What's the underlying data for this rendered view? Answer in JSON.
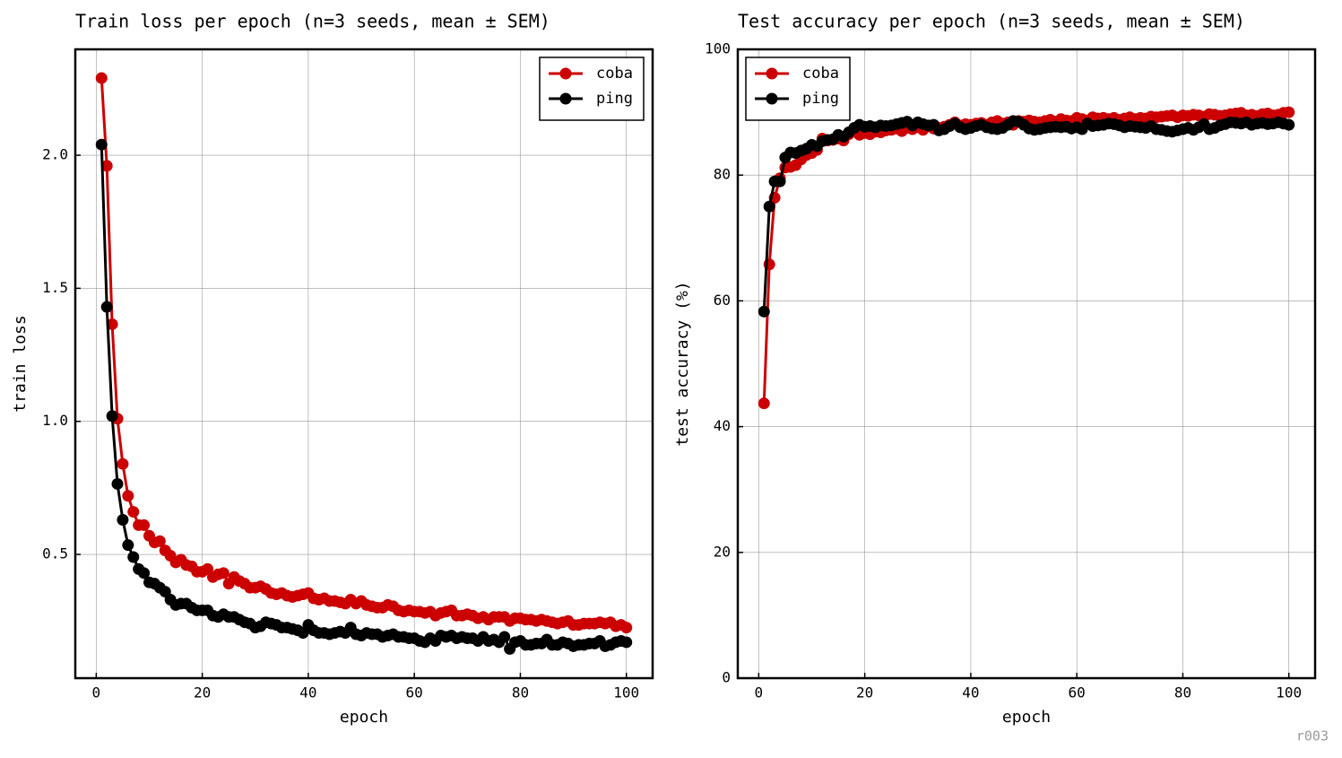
{
  "chart_data": [
    {
      "type": "line",
      "title": "Train loss per epoch (n=3 seeds, mean ± SEM)",
      "x_label": "epoch",
      "y_label": "train loss",
      "x": [
        1,
        2,
        3,
        4,
        5,
        6,
        7,
        8,
        9,
        10,
        11,
        12,
        13,
        14,
        15,
        16,
        17,
        18,
        19,
        20,
        21,
        22,
        23,
        24,
        25,
        26,
        27,
        28,
        29,
        30,
        31,
        32,
        33,
        34,
        35,
        36,
        37,
        38,
        39,
        40,
        41,
        42,
        43,
        44,
        45,
        46,
        47,
        48,
        49,
        50,
        51,
        52,
        53,
        54,
        55,
        56,
        57,
        58,
        59,
        60,
        61,
        62,
        63,
        64,
        65,
        66,
        67,
        68,
        69,
        70,
        71,
        72,
        73,
        74,
        75,
        76,
        77,
        78,
        79,
        80,
        81,
        82,
        83,
        84,
        85,
        86,
        87,
        88,
        89,
        90,
        91,
        92,
        93,
        94,
        95,
        96,
        97,
        98,
        99,
        100
      ],
      "series": [
        {
          "name": "coba",
          "color": "#cc0000",
          "values": [
            2.29,
            1.96,
            1.365,
            1.01,
            0.84,
            0.72,
            0.66,
            0.61,
            0.61,
            0.57,
            0.545,
            0.55,
            0.515,
            0.495,
            0.47,
            0.48,
            0.46,
            0.455,
            0.435,
            0.435,
            0.445,
            0.415,
            0.425,
            0.43,
            0.39,
            0.415,
            0.4,
            0.39,
            0.375,
            0.375,
            0.38,
            0.37,
            0.355,
            0.35,
            0.355,
            0.345,
            0.34,
            0.345,
            0.35,
            0.355,
            0.335,
            0.33,
            0.335,
            0.325,
            0.325,
            0.32,
            0.315,
            0.33,
            0.315,
            0.325,
            0.31,
            0.305,
            0.3,
            0.3,
            0.31,
            0.305,
            0.29,
            0.285,
            0.29,
            0.285,
            0.285,
            0.28,
            0.285,
            0.27,
            0.28,
            0.285,
            0.29,
            0.27,
            0.27,
            0.275,
            0.27,
            0.26,
            0.265,
            0.255,
            0.265,
            0.265,
            0.265,
            0.25,
            0.26,
            0.26,
            0.255,
            0.255,
            0.25,
            0.255,
            0.25,
            0.245,
            0.24,
            0.245,
            0.25,
            0.235,
            0.235,
            0.24,
            0.24,
            0.24,
            0.245,
            0.24,
            0.245,
            0.23,
            0.235,
            0.225
          ]
        },
        {
          "name": "ping",
          "color": "#000000",
          "values": [
            2.04,
            1.43,
            1.02,
            0.765,
            0.63,
            0.535,
            0.49,
            0.445,
            0.43,
            0.395,
            0.39,
            0.375,
            0.36,
            0.33,
            0.31,
            0.315,
            0.315,
            0.3,
            0.29,
            0.29,
            0.29,
            0.27,
            0.265,
            0.275,
            0.265,
            0.265,
            0.255,
            0.245,
            0.24,
            0.225,
            0.23,
            0.245,
            0.24,
            0.235,
            0.225,
            0.225,
            0.22,
            0.215,
            0.205,
            0.235,
            0.215,
            0.205,
            0.205,
            0.2,
            0.205,
            0.21,
            0.205,
            0.225,
            0.2,
            0.195,
            0.205,
            0.2,
            0.2,
            0.19,
            0.195,
            0.2,
            0.19,
            0.19,
            0.185,
            0.185,
            0.175,
            0.17,
            0.185,
            0.175,
            0.195,
            0.19,
            0.195,
            0.185,
            0.19,
            0.185,
            0.185,
            0.175,
            0.19,
            0.175,
            0.18,
            0.17,
            0.19,
            0.145,
            0.17,
            0.175,
            0.16,
            0.16,
            0.165,
            0.165,
            0.18,
            0.16,
            0.16,
            0.17,
            0.165,
            0.155,
            0.16,
            0.16,
            0.165,
            0.165,
            0.175,
            0.155,
            0.16,
            0.17,
            0.175,
            0.17
          ]
        }
      ],
      "xlim": [
        -3.95,
        104.95
      ],
      "xticks": [
        0,
        20,
        40,
        60,
        80,
        100
      ],
      "ylim": [
        0.035,
        2.398
      ],
      "yticks": [
        0.5,
        {
          "value": 1,
          "label": "1.0"
        },
        1.5,
        {
          "value": 2,
          "label": "2.0"
        }
      ],
      "grid": true,
      "legend": "upper right"
    },
    {
      "type": "line",
      "title": "Test accuracy per epoch (n=3 seeds, mean ± SEM)",
      "x_label": "epoch",
      "y_label": "test accuracy (%)",
      "x": [
        1,
        2,
        3,
        4,
        5,
        6,
        7,
        8,
        9,
        10,
        11,
        12,
        13,
        14,
        15,
        16,
        17,
        18,
        19,
        20,
        21,
        22,
        23,
        24,
        25,
        26,
        27,
        28,
        29,
        30,
        31,
        32,
        33,
        34,
        35,
        36,
        37,
        38,
        39,
        40,
        41,
        42,
        43,
        44,
        45,
        46,
        47,
        48,
        49,
        50,
        51,
        52,
        53,
        54,
        55,
        56,
        57,
        58,
        59,
        60,
        61,
        62,
        63,
        64,
        65,
        66,
        67,
        68,
        69,
        70,
        71,
        72,
        73,
        74,
        75,
        76,
        77,
        78,
        79,
        80,
        81,
        82,
        83,
        84,
        85,
        86,
        87,
        88,
        89,
        90,
        91,
        92,
        93,
        94,
        95,
        96,
        97,
        98,
        99,
        100
      ],
      "series": [
        {
          "name": "coba",
          "color": "#cc0000",
          "values": [
            43.7,
            65.8,
            76.4,
            79.5,
            81.2,
            81.3,
            81.6,
            82.5,
            83.2,
            83.5,
            84.0,
            85.8,
            85.5,
            85.6,
            85.8,
            85.5,
            86.5,
            87.0,
            86.4,
            86.7,
            86.5,
            86.9,
            86.8,
            87.1,
            87.2,
            87.4,
            87.0,
            87.5,
            87.3,
            87.6,
            87.2,
            87.8,
            87.4,
            87.5,
            87.7,
            88.0,
            88.4,
            87.9,
            88.1,
            88.0,
            88.2,
            88.3,
            88.0,
            88.4,
            88.6,
            88.2,
            88.4,
            88.0,
            88.6,
            88.5,
            88.7,
            88.5,
            88.4,
            88.6,
            88.8,
            88.5,
            88.9,
            88.7,
            88.6,
            89.1,
            88.9,
            88.7,
            89.2,
            89.0,
            89.1,
            88.9,
            89.1,
            88.8,
            89.0,
            89.2,
            88.9,
            89.1,
            89.0,
            89.3,
            89.2,
            89.3,
            89.4,
            89.5,
            89.2,
            89.5,
            89.4,
            89.6,
            89.5,
            89.3,
            89.7,
            89.6,
            89.4,
            89.5,
            89.7,
            89.8,
            89.9,
            89.5,
            89.6,
            89.4,
            89.7,
            89.8,
            89.5,
            89.6,
            89.9,
            90.0
          ]
        },
        {
          "name": "ping",
          "color": "#000000",
          "values": [
            58.3,
            75.0,
            79.0,
            79.0,
            82.8,
            83.6,
            83.5,
            83.9,
            84.2,
            84.8,
            84.6,
            85.4,
            85.6,
            85.7,
            86.4,
            86.1,
            86.8,
            87.5,
            88.0,
            87.7,
            87.8,
            87.6,
            87.9,
            87.8,
            87.9,
            88.1,
            88.3,
            88.5,
            87.9,
            88.4,
            88.1,
            87.9,
            88.0,
            87.1,
            87.3,
            87.8,
            88.2,
            87.6,
            87.3,
            87.5,
            87.8,
            88.0,
            87.6,
            87.4,
            87.3,
            87.5,
            88.0,
            88.6,
            88.5,
            88.0,
            87.4,
            87.2,
            87.3,
            87.5,
            87.6,
            87.7,
            87.6,
            87.7,
            87.4,
            87.6,
            87.3,
            88.2,
            87.8,
            87.9,
            88.0,
            88.2,
            88.1,
            87.9,
            87.6,
            87.8,
            87.7,
            87.6,
            87.5,
            87.8,
            87.3,
            87.2,
            87.0,
            86.9,
            87.1,
            87.3,
            87.5,
            87.2,
            87.6,
            88.1,
            87.3,
            87.5,
            87.9,
            88.1,
            88.4,
            88.3,
            88.2,
            88.4,
            88.0,
            88.2,
            88.3,
            88.1,
            88.2,
            88.4,
            88.2,
            88.0
          ]
        }
      ],
      "xlim": [
        -3.95,
        104.95
      ],
      "xticks": [
        0,
        20,
        40,
        60,
        80,
        100
      ],
      "ylim": [
        0,
        100
      ],
      "yticks": [
        0,
        20,
        40,
        60,
        80,
        100
      ],
      "grid": true,
      "legend": "upper left"
    }
  ],
  "footer": "r003"
}
